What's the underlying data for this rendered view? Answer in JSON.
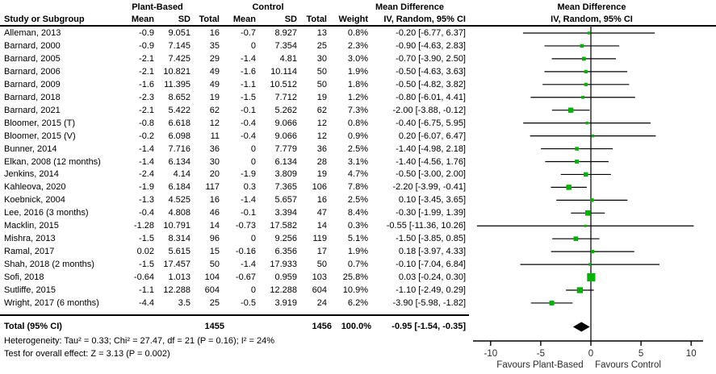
{
  "table_header": {
    "group_plant": "Plant-Based",
    "group_control": "Control",
    "md_header_table": "Mean Difference",
    "md_header_plot": "Mean Difference",
    "col_study": "Study or Subgroup",
    "col_mean1": "Mean",
    "col_sd1": "SD",
    "col_total1": "Total",
    "col_mean2": "Mean",
    "col_sd2": "SD",
    "col_total2": "Total",
    "col_weight": "Weight",
    "col_ci": "IV, Random, 95% CI",
    "col_ci_plot": "IV, Random, 95% CI"
  },
  "chart_data": {
    "type": "forest",
    "title": "Mean Difference  IV, Random, 95% CI",
    "x_axis": {
      "ticks": [
        -10,
        -5,
        0,
        5,
        10
      ],
      "range": [
        -11.7,
        11.2
      ],
      "favours_left": "Favours Plant-Based",
      "favours_right": "Favours Control"
    },
    "studies": [
      {
        "name": "Alleman, 2013",
        "mean1": "-0.9",
        "sd1": "9.051",
        "n1": "16",
        "mean2": "-0.7",
        "sd2": "8.927",
        "n2": "13",
        "weight": "0.8%",
        "w": 0.8,
        "md": -0.2,
        "lo": -6.77,
        "hi": 6.37,
        "ci_text": "-0.20 [-6.77, 6.37]"
      },
      {
        "name": "Barnard, 2000",
        "mean1": "-0.9",
        "sd1": "7.145",
        "n1": "35",
        "mean2": "0",
        "sd2": "7.354",
        "n2": "25",
        "weight": "2.3%",
        "w": 2.3,
        "md": -0.9,
        "lo": -4.63,
        "hi": 2.83,
        "ci_text": "-0.90 [-4.63, 2.83]"
      },
      {
        "name": "Barnard, 2005",
        "mean1": "-2.1",
        "sd1": "7.425",
        "n1": "29",
        "mean2": "-1.4",
        "sd2": "4.81",
        "n2": "30",
        "weight": "3.0%",
        "w": 3.0,
        "md": -0.7,
        "lo": -3.9,
        "hi": 2.5,
        "ci_text": "-0.70 [-3.90, 2.50]"
      },
      {
        "name": "Barnard, 2006",
        "mean1": "-2.1",
        "sd1": "10.821",
        "n1": "49",
        "mean2": "-1.6",
        "sd2": "10.114",
        "n2": "50",
        "weight": "1.9%",
        "w": 1.9,
        "md": -0.5,
        "lo": -4.63,
        "hi": 3.63,
        "ci_text": "-0.50 [-4.63, 3.63]"
      },
      {
        "name": "Barnard, 2009",
        "mean1": "-1.6",
        "sd1": "11.395",
        "n1": "49",
        "mean2": "-1.1",
        "sd2": "10.512",
        "n2": "50",
        "weight": "1.8%",
        "w": 1.8,
        "md": -0.5,
        "lo": -4.82,
        "hi": 3.82,
        "ci_text": "-0.50 [-4.82, 3.82]"
      },
      {
        "name": "Barnard, 2018",
        "mean1": "-2.3",
        "sd1": "8.652",
        "n1": "19",
        "mean2": "-1.5",
        "sd2": "7.712",
        "n2": "19",
        "weight": "1.2%",
        "w": 1.2,
        "md": -0.8,
        "lo": -6.01,
        "hi": 4.41,
        "ci_text": "-0.80 [-6.01, 4.41]"
      },
      {
        "name": "Barnard, 2021",
        "mean1": "-2.1",
        "sd1": "5.422",
        "n1": "62",
        "mean2": "-0.1",
        "sd2": "5.262",
        "n2": "62",
        "weight": "7.3%",
        "w": 7.3,
        "md": -2.0,
        "lo": -3.88,
        "hi": -0.12,
        "ci_text": "-2.00 [-3.88, -0.12]"
      },
      {
        "name": "Bloomer, 2015 (T)",
        "mean1": "-0.8",
        "sd1": "6.618",
        "n1": "12",
        "mean2": "-0.4",
        "sd2": "9.066",
        "n2": "12",
        "weight": "0.8%",
        "w": 0.8,
        "md": -0.4,
        "lo": -6.75,
        "hi": 5.95,
        "ci_text": "-0.40 [-6.75, 5.95]"
      },
      {
        "name": "Bloomer, 2015 (V)",
        "mean1": "-0.2",
        "sd1": "6.098",
        "n1": "11",
        "mean2": "-0.4",
        "sd2": "9.066",
        "n2": "12",
        "weight": "0.9%",
        "w": 0.9,
        "md": 0.2,
        "lo": -6.07,
        "hi": 6.47,
        "ci_text": "0.20 [-6.07, 6.47]"
      },
      {
        "name": "Bunner, 2014",
        "mean1": "-1.4",
        "sd1": "7.716",
        "n1": "36",
        "mean2": "0",
        "sd2": "7.779",
        "n2": "36",
        "weight": "2.5%",
        "w": 2.5,
        "md": -1.4,
        "lo": -4.98,
        "hi": 2.18,
        "ci_text": "-1.40 [-4.98, 2.18]"
      },
      {
        "name": "Elkan, 2008 (12 months)",
        "mean1": "-1.4",
        "sd1": "6.134",
        "n1": "30",
        "mean2": "0",
        "sd2": "6.134",
        "n2": "28",
        "weight": "3.1%",
        "w": 3.1,
        "md": -1.4,
        "lo": -4.56,
        "hi": 1.76,
        "ci_text": "-1.40 [-4.56, 1.76]"
      },
      {
        "name": "Jenkins, 2014",
        "mean1": "-2.4",
        "sd1": "4.14",
        "n1": "20",
        "mean2": "-1.9",
        "sd2": "3.809",
        "n2": "19",
        "weight": "4.7%",
        "w": 4.7,
        "md": -0.5,
        "lo": -3.0,
        "hi": 2.0,
        "ci_text": "-0.50 [-3.00, 2.00]"
      },
      {
        "name": "Kahleova, 2020",
        "mean1": "-1.9",
        "sd1": "6.184",
        "n1": "117",
        "mean2": "0.3",
        "sd2": "7.365",
        "n2": "106",
        "weight": "7.8%",
        "w": 7.8,
        "md": -2.2,
        "lo": -3.99,
        "hi": -0.41,
        "ci_text": "-2.20 [-3.99, -0.41]"
      },
      {
        "name": "Koebnick, 2004",
        "mean1": "-1.3",
        "sd1": "4.525",
        "n1": "16",
        "mean2": "-1.4",
        "sd2": "5.657",
        "n2": "16",
        "weight": "2.5%",
        "w": 2.5,
        "md": 0.1,
        "lo": -3.45,
        "hi": 3.65,
        "ci_text": "0.10 [-3.45, 3.65]"
      },
      {
        "name": "Lee, 2016 (3 months)",
        "mean1": "-0.4",
        "sd1": "4.808",
        "n1": "46",
        "mean2": "-0.1",
        "sd2": "3.394",
        "n2": "47",
        "weight": "8.4%",
        "w": 8.4,
        "md": -0.3,
        "lo": -1.99,
        "hi": 1.39,
        "ci_text": "-0.30 [-1.99, 1.39]"
      },
      {
        "name": "Macklin, 2015",
        "mean1": "-1.28",
        "sd1": "10.791",
        "n1": "14",
        "mean2": "-0.73",
        "sd2": "17.582",
        "n2": "14",
        "weight": "0.3%",
        "w": 0.3,
        "md": -0.55,
        "lo": -11.36,
        "hi": 10.26,
        "ci_text": "-0.55 [-11.36, 10.26]"
      },
      {
        "name": "Mishra, 2013",
        "mean1": "-1.5",
        "sd1": "8.314",
        "n1": "96",
        "mean2": "0",
        "sd2": "9.256",
        "n2": "119",
        "weight": "5.1%",
        "w": 5.1,
        "md": -1.5,
        "lo": -3.85,
        "hi": 0.85,
        "ci_text": "-1.50 [-3.85, 0.85]"
      },
      {
        "name": "Ramal, 2017",
        "mean1": "0.02",
        "sd1": "5.615",
        "n1": "15",
        "mean2": "-0.16",
        "sd2": "6.356",
        "n2": "17",
        "weight": "1.9%",
        "w": 1.9,
        "md": 0.18,
        "lo": -3.97,
        "hi": 4.33,
        "ci_text": "0.18 [-3.97, 4.33]"
      },
      {
        "name": "Shah, 2018 (2 months)",
        "mean1": "-1.5",
        "sd1": "17.457",
        "n1": "50",
        "mean2": "-1.4",
        "sd2": "17.933",
        "n2": "50",
        "weight": "0.7%",
        "w": 0.7,
        "md": -0.1,
        "lo": -7.04,
        "hi": 6.84,
        "ci_text": "-0.10 [-7.04, 6.84]"
      },
      {
        "name": "Sofi, 2018",
        "mean1": "-0.64",
        "sd1": "1.013",
        "n1": "104",
        "mean2": "-0.67",
        "sd2": "0.959",
        "n2": "103",
        "weight": "25.8%",
        "w": 25.8,
        "md": 0.03,
        "lo": -0.24,
        "hi": 0.3,
        "ci_text": "0.03 [-0.24, 0.30]"
      },
      {
        "name": "Sutliffe, 2015",
        "mean1": "-1.1",
        "sd1": "12.288",
        "n1": "604",
        "mean2": "0",
        "sd2": "12.288",
        "n2": "604",
        "weight": "10.9%",
        "w": 10.9,
        "md": -1.1,
        "lo": -2.49,
        "hi": 0.29,
        "ci_text": "-1.10 [-2.49, 0.29]"
      },
      {
        "name": "Wright, 2017 (6 months)",
        "mean1": "-4.4",
        "sd1": "3.5",
        "n1": "25",
        "mean2": "-0.5",
        "sd2": "3.919",
        "n2": "24",
        "weight": "6.2%",
        "w": 6.2,
        "md": -3.9,
        "lo": -5.98,
        "hi": -1.82,
        "ci_text": "-3.90 [-5.98, -1.82]"
      }
    ],
    "total": {
      "label": "Total (95% CI)",
      "n1": "1455",
      "n2": "1456",
      "weight": "100.0%",
      "md": -0.95,
      "lo": -1.54,
      "hi": -0.35,
      "ci_text": "-0.95 [-1.54, -0.35]"
    }
  },
  "footer": {
    "heterogeneity": "Heterogeneity: Tau² = 0.33; Chi² = 27.47, df = 21 (P = 0.16); I² = 24%",
    "overall_effect": "Test for overall effect: Z = 3.13 (P = 0.002)"
  },
  "colors": {
    "square_green": "#00b300",
    "diamond_black": "#000000",
    "line_black": "#000000",
    "axis_text": "#2b2b2b"
  }
}
